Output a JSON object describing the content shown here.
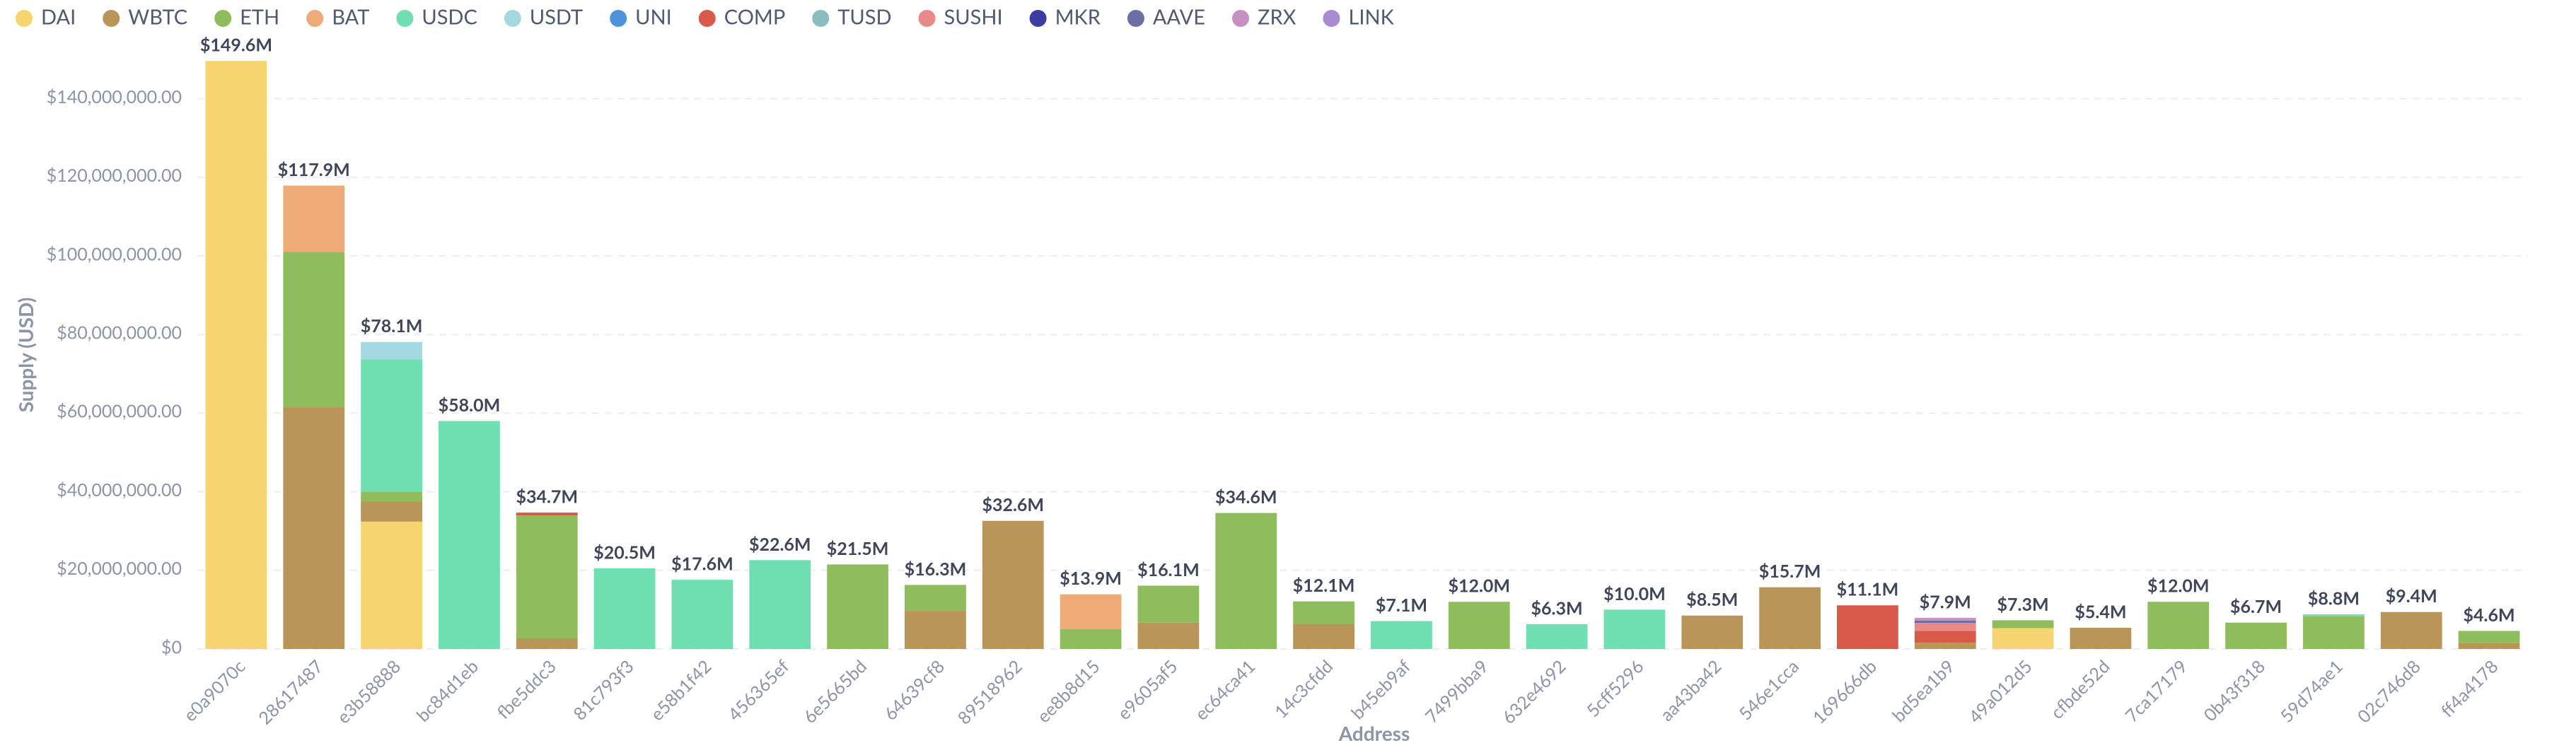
{
  "chart_data": {
    "type": "stacked-bar",
    "x_label": "Address",
    "y_label": "Supply (USD)",
    "categories": [
      "e0a9070c",
      "28617487",
      "e3b58888",
      "bc84d1eb",
      "fbe5ddc3",
      "81c793f3",
      "e58b1f42",
      "456365ef",
      "6e5665bd",
      "64639cf8",
      "89518962",
      "ee8b8d15",
      "e9605af5",
      "ec64ca41",
      "14c3cfdd",
      "b45eb9af",
      "7499bba9",
      "632e4692",
      "5cff5296",
      "aa43ba42",
      "546e1cca",
      "169666db",
      "bd5ea1b9",
      "49a012d5",
      "cfbde52d",
      "7ca17179",
      "0b43f318",
      "59d74ae1",
      "02c746d8",
      "ff4a4178"
    ],
    "series": [
      {
        "name": "DAI",
        "color": "#f6d46f",
        "values": [
          149600000,
          null,
          32400000,
          null,
          null,
          null,
          null,
          null,
          null,
          null,
          null,
          null,
          null,
          null,
          null,
          null,
          null,
          null,
          null,
          null,
          null,
          null,
          null,
          5300000,
          null,
          null,
          null,
          null,
          null,
          null
        ]
      },
      {
        "name": "WBTC",
        "color": "#b9955a",
        "values": [
          null,
          61500000,
          5100000,
          null,
          2700000,
          null,
          null,
          null,
          null,
          9700000,
          32600000,
          null,
          6700000,
          null,
          6300000,
          null,
          null,
          null,
          null,
          8500000,
          15700000,
          null,
          1600000,
          null,
          5400000,
          null,
          null,
          null,
          9400000,
          1500000
        ]
      },
      {
        "name": "ETH",
        "color": "#90bd5c",
        "values": [
          null,
          39500000,
          2500000,
          null,
          31300000,
          null,
          null,
          null,
          21500000,
          6600000,
          null,
          5100000,
          9400000,
          34600000,
          5800000,
          null,
          12000000,
          null,
          null,
          null,
          null,
          null,
          null,
          2000000,
          null,
          12000000,
          6700000,
          8300000,
          null,
          3100000
        ]
      },
      {
        "name": "BAT",
        "color": "#eeab78",
        "values": [
          null,
          16900000,
          null,
          null,
          null,
          null,
          null,
          null,
          null,
          null,
          null,
          8800000,
          null,
          null,
          null,
          null,
          null,
          null,
          null,
          null,
          null,
          null,
          null,
          null,
          null,
          null,
          null,
          null,
          null,
          null
        ]
      },
      {
        "name": "USDC",
        "color": "#6fdfb1",
        "values": [
          null,
          null,
          33700000,
          58000000,
          null,
          20500000,
          17600000,
          22600000,
          null,
          null,
          null,
          null,
          null,
          null,
          null,
          7100000,
          null,
          6300000,
          10000000,
          null,
          null,
          null,
          null,
          null,
          null,
          null,
          null,
          500000,
          null,
          null
        ]
      },
      {
        "name": "USDT",
        "color": "#a5d9e1",
        "values": [
          null,
          null,
          4400000,
          null,
          null,
          null,
          null,
          null,
          null,
          null,
          null,
          null,
          null,
          null,
          null,
          null,
          null,
          null,
          null,
          null,
          null,
          null,
          null,
          null,
          null,
          null,
          null,
          null,
          null,
          null
        ]
      },
      {
        "name": "UNI",
        "color": "#4d93d9",
        "values": [
          null,
          null,
          null,
          null,
          null,
          null,
          null,
          null,
          null,
          null,
          null,
          null,
          null,
          null,
          null,
          null,
          null,
          null,
          null,
          null,
          null,
          null,
          null,
          null,
          null,
          null,
          null,
          null,
          null,
          null
        ]
      },
      {
        "name": "COMP",
        "color": "#d9594b",
        "values": [
          null,
          null,
          null,
          null,
          700000,
          null,
          null,
          null,
          null,
          null,
          null,
          null,
          null,
          null,
          null,
          null,
          null,
          null,
          null,
          null,
          null,
          11100000,
          3000000,
          null,
          null,
          null,
          null,
          null,
          null,
          null
        ]
      },
      {
        "name": "TUSD",
        "color": "#8abdbe",
        "values": [
          null,
          null,
          null,
          null,
          null,
          null,
          null,
          null,
          null,
          null,
          null,
          null,
          null,
          null,
          null,
          null,
          null,
          null,
          null,
          null,
          null,
          null,
          null,
          null,
          null,
          null,
          null,
          null,
          null,
          null
        ]
      },
      {
        "name": "SUSHI",
        "color": "#e98a8a",
        "values": [
          null,
          null,
          null,
          null,
          null,
          null,
          null,
          null,
          null,
          null,
          null,
          null,
          null,
          null,
          null,
          null,
          null,
          null,
          null,
          null,
          null,
          null,
          2000000,
          null,
          null,
          null,
          null,
          null,
          null,
          null
        ]
      },
      {
        "name": "MKR",
        "color": "#3c3ca2",
        "values": [
          null,
          null,
          null,
          null,
          null,
          null,
          null,
          null,
          null,
          null,
          null,
          null,
          null,
          null,
          null,
          null,
          null,
          null,
          null,
          null,
          null,
          null,
          null,
          null,
          null,
          null,
          null,
          null,
          null,
          null
        ]
      },
      {
        "name": "AAVE",
        "color": "#6b6fa6",
        "values": [
          null,
          null,
          null,
          null,
          null,
          null,
          null,
          null,
          null,
          null,
          null,
          null,
          null,
          null,
          null,
          null,
          null,
          null,
          null,
          null,
          null,
          null,
          600000,
          null,
          null,
          null,
          null,
          null,
          null,
          null
        ]
      },
      {
        "name": "ZRX",
        "color": "#c690c2",
        "values": [
          null,
          null,
          null,
          null,
          null,
          null,
          null,
          null,
          null,
          null,
          null,
          null,
          null,
          null,
          null,
          null,
          null,
          null,
          null,
          null,
          null,
          null,
          700000,
          null,
          null,
          null,
          null,
          null,
          null,
          null
        ]
      },
      {
        "name": "LINK",
        "color": "#a88bd1",
        "values": [
          null,
          null,
          null,
          null,
          null,
          null,
          null,
          null,
          null,
          null,
          null,
          null,
          null,
          null,
          null,
          null,
          null,
          null,
          null,
          null,
          null,
          null,
          null,
          null,
          null,
          null,
          null,
          null,
          null,
          null
        ]
      }
    ],
    "totals": {
      "values": [
        149600000,
        117900000,
        78100000,
        58000000,
        34700000,
        20500000,
        17600000,
        22600000,
        21500000,
        16300000,
        32600000,
        13900000,
        16100000,
        34600000,
        12100000,
        7100000,
        12000000,
        6300000,
        10000000,
        8500000,
        15700000,
        11100000,
        7900000,
        7300000,
        5400000,
        12000000,
        6700000,
        8800000,
        9400000,
        4600000
      ],
      "value_labels": [
        "$149.6M",
        "$117.9M",
        "$78.1M",
        "$58.0M",
        "$34.7M",
        "$20.5M",
        "$17.6M",
        "$22.6M",
        "$21.5M",
        "$16.3M",
        "$32.6M",
        "$13.9M",
        "$16.1M",
        "$34.6M",
        "$12.1M",
        "$7.1M",
        "$12.0M",
        "$6.3M",
        "$10.0M",
        "$8.5M",
        "$15.7M",
        "$11.1M",
        "$7.9M",
        "$7.3M",
        "$5.4M",
        "$12.0M",
        "$6.7M",
        "$8.8M",
        "$9.4M",
        "$4.6M"
      ]
    },
    "ylim": [
      0,
      150000000
    ],
    "yticks": [
      {
        "value": 0,
        "label": "$0"
      },
      {
        "value": 20000000,
        "label": "$20,000,000.00"
      },
      {
        "value": 40000000,
        "label": "$40,000,000.00"
      },
      {
        "value": 60000000,
        "label": "$60,000,000.00"
      },
      {
        "value": 80000000,
        "label": "$80,000,000.00"
      },
      {
        "value": 100000000,
        "label": "$100,000,000.00"
      },
      {
        "value": 120000000,
        "label": "$120,000,000.00"
      },
      {
        "value": 140000000,
        "label": "$140,000,000.00"
      }
    ],
    "grid": true,
    "legend": "top-left"
  }
}
